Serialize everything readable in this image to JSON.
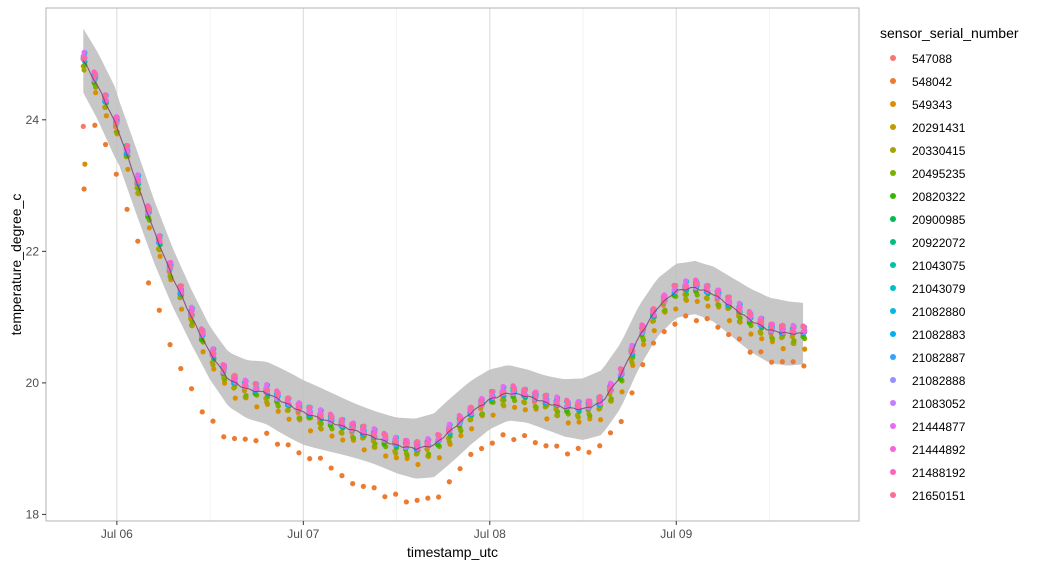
{
  "chart_data": {
    "type": "scatter",
    "xlabel": "timestamp_utc",
    "ylabel": "temperature_degree_c",
    "x_ticks": [
      {
        "label": "Jul 06",
        "day": 1.0
      },
      {
        "label": "Jul 07",
        "day": 2.0
      },
      {
        "label": "Jul 08",
        "day": 3.0
      },
      {
        "label": "Jul 09",
        "day": 4.0
      }
    ],
    "xlim_days": [
      0.62,
      4.98
    ],
    "ylim": [
      17.9,
      25.7
    ],
    "y_ticks": [
      18,
      20,
      22,
      24
    ],
    "grid": true,
    "smooth_band": true,
    "legend": {
      "title": "sensor_serial_number",
      "position": "right"
    },
    "mean_curve": [
      {
        "day": 0.82,
        "temp": 24.9
      },
      {
        "day": 0.9,
        "temp": 24.5
      },
      {
        "day": 1.0,
        "temp": 23.9
      },
      {
        "day": 1.1,
        "temp": 23.1
      },
      {
        "day": 1.2,
        "temp": 22.3
      },
      {
        "day": 1.3,
        "temp": 21.6
      },
      {
        "day": 1.4,
        "temp": 21.0
      },
      {
        "day": 1.5,
        "temp": 20.45
      },
      {
        "day": 1.6,
        "temp": 20.05
      },
      {
        "day": 1.7,
        "temp": 19.9
      },
      {
        "day": 1.8,
        "temp": 19.85
      },
      {
        "day": 1.9,
        "temp": 19.7
      },
      {
        "day": 2.0,
        "temp": 19.55
      },
      {
        "day": 2.1,
        "temp": 19.45
      },
      {
        "day": 2.2,
        "temp": 19.35
      },
      {
        "day": 2.3,
        "temp": 19.25
      },
      {
        "day": 2.4,
        "temp": 19.15
      },
      {
        "day": 2.5,
        "temp": 19.05
      },
      {
        "day": 2.6,
        "temp": 19.0
      },
      {
        "day": 2.7,
        "temp": 19.05
      },
      {
        "day": 2.8,
        "temp": 19.3
      },
      {
        "day": 2.9,
        "temp": 19.55
      },
      {
        "day": 3.0,
        "temp": 19.75
      },
      {
        "day": 3.1,
        "temp": 19.85
      },
      {
        "day": 3.2,
        "temp": 19.8
      },
      {
        "day": 3.3,
        "temp": 19.7
      },
      {
        "day": 3.4,
        "temp": 19.62
      },
      {
        "day": 3.5,
        "temp": 19.6
      },
      {
        "day": 3.6,
        "temp": 19.7
      },
      {
        "day": 3.7,
        "temp": 20.1
      },
      {
        "day": 3.8,
        "temp": 20.7
      },
      {
        "day": 3.9,
        "temp": 21.15
      },
      {
        "day": 4.0,
        "temp": 21.4
      },
      {
        "day": 4.1,
        "temp": 21.45
      },
      {
        "day": 4.2,
        "temp": 21.35
      },
      {
        "day": 4.3,
        "temp": 21.15
      },
      {
        "day": 4.4,
        "temp": 20.95
      },
      {
        "day": 4.5,
        "temp": 20.8
      },
      {
        "day": 4.6,
        "temp": 20.75
      },
      {
        "day": 4.68,
        "temp": 20.75
      }
    ],
    "series": [
      {
        "name": "547088",
        "color": "#F8766D",
        "offset": 0.0,
        "start_temp": 23.9
      },
      {
        "name": "548042",
        "color": "#EB7B30",
        "offset": -0.6,
        "start_temp": 22.9,
        "low_outlier": true
      },
      {
        "name": "549343",
        "color": "#D89000",
        "offset": -0.2,
        "start_temp": 23.3
      },
      {
        "name": "20291431",
        "color": "#C09B00",
        "offset": -0.05
      },
      {
        "name": "20330415",
        "color": "#A3A500",
        "offset": -0.1
      },
      {
        "name": "20495235",
        "color": "#7CAE00",
        "offset": -0.08
      },
      {
        "name": "20820322",
        "color": "#39B600",
        "offset": 0.0
      },
      {
        "name": "20900985",
        "color": "#00BB4E",
        "offset": 0.05
      },
      {
        "name": "20922072",
        "color": "#00BF7D",
        "offset": 0.02
      },
      {
        "name": "21043075",
        "color": "#00C1A3",
        "offset": 0.06
      },
      {
        "name": "21043079",
        "color": "#00BFC4",
        "offset": 0.04
      },
      {
        "name": "21082880",
        "color": "#00BAE0",
        "offset": 0.07
      },
      {
        "name": "21082883",
        "color": "#00B0F6",
        "offset": 0.03
      },
      {
        "name": "21082887",
        "color": "#35A2FF",
        "offset": 0.05
      },
      {
        "name": "21082888",
        "color": "#9590FF",
        "offset": 0.06
      },
      {
        "name": "21083052",
        "color": "#C77CFF",
        "offset": 0.04
      },
      {
        "name": "21444877",
        "color": "#E76BF3",
        "offset": 0.08
      },
      {
        "name": "21444892",
        "color": "#FA62DB",
        "offset": 0.05
      },
      {
        "name": "21488192",
        "color": "#FF62BC",
        "offset": 0.07
      },
      {
        "name": "21650151",
        "color": "#FF6C91",
        "offset": 0.06
      }
    ]
  }
}
